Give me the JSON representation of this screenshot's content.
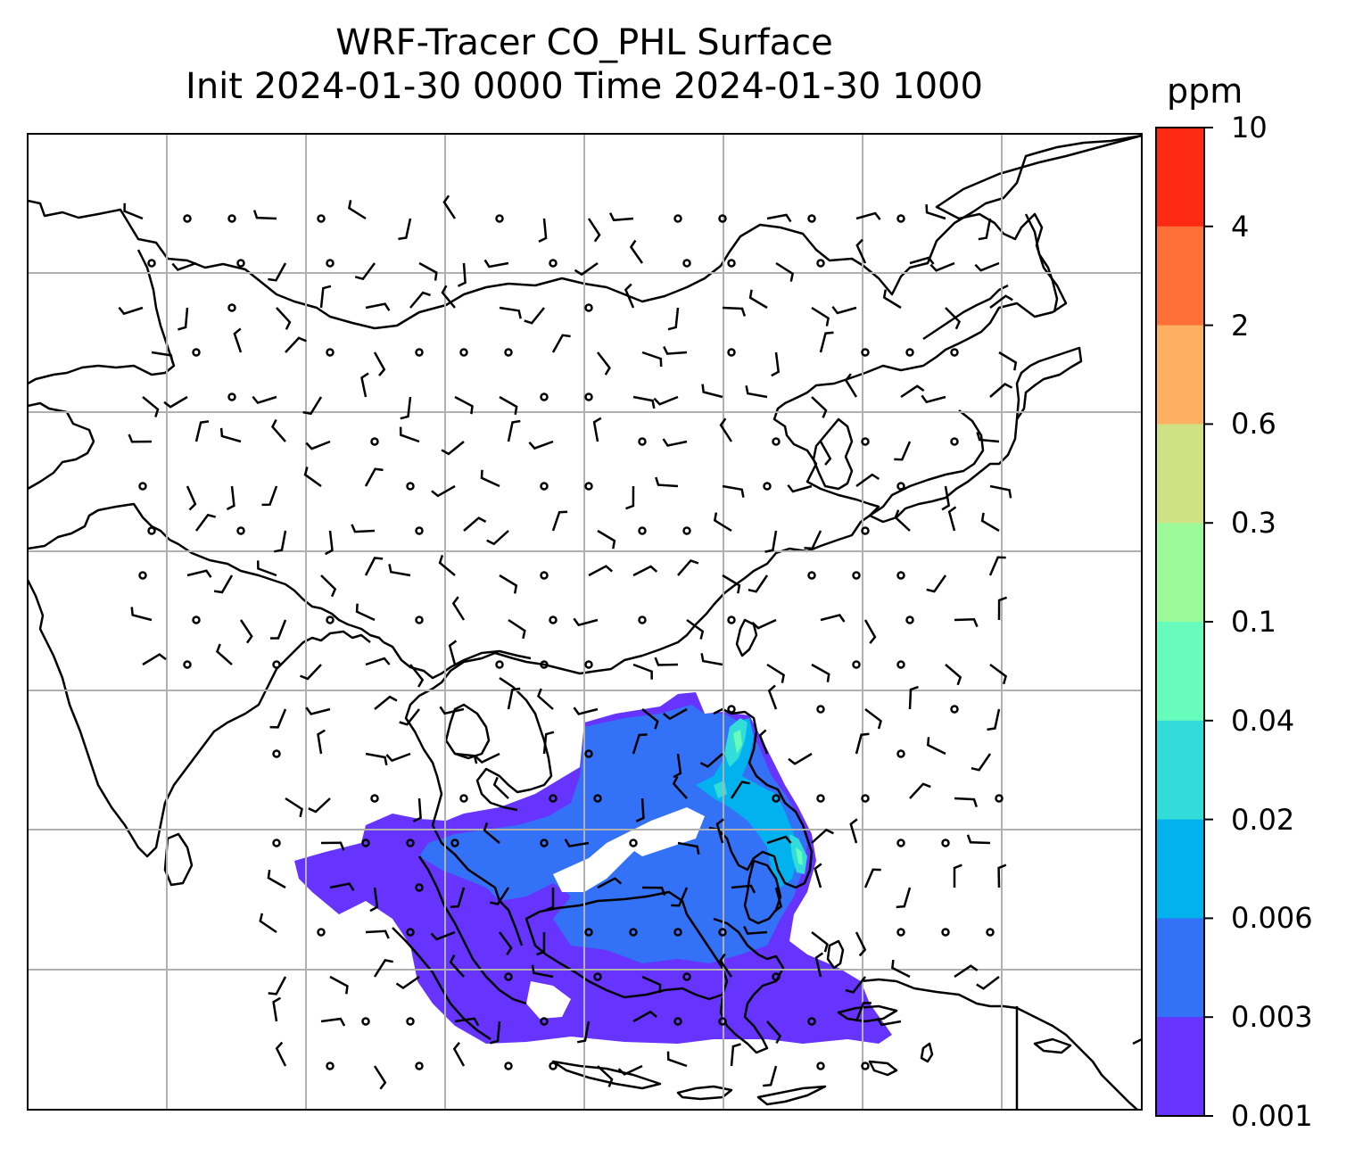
{
  "title": {
    "line1": "WRF-Tracer CO_PHL Surface",
    "line2": "Init 2024-01-30 0000 Time 2024-01-30 1000"
  },
  "colorbar": {
    "unit": "ppm",
    "ticks": [
      "10",
      "4",
      "2",
      "0.6",
      "0.3",
      "0.1",
      "0.04",
      "0.02",
      "0.006",
      "0.003",
      "0.001"
    ],
    "colors": [
      "#ff2a14",
      "#ff7038",
      "#fdb062",
      "#d0e184",
      "#9cf998",
      "#68fcbc",
      "#32dcd8",
      "#02b2ee",
      "#3372f6",
      "#6633ff"
    ]
  },
  "map": {
    "grid_color": "#b0b0b0",
    "coastline_color": "#000000",
    "wind_barb_color": "#000000",
    "calm_marker": "circle"
  }
}
